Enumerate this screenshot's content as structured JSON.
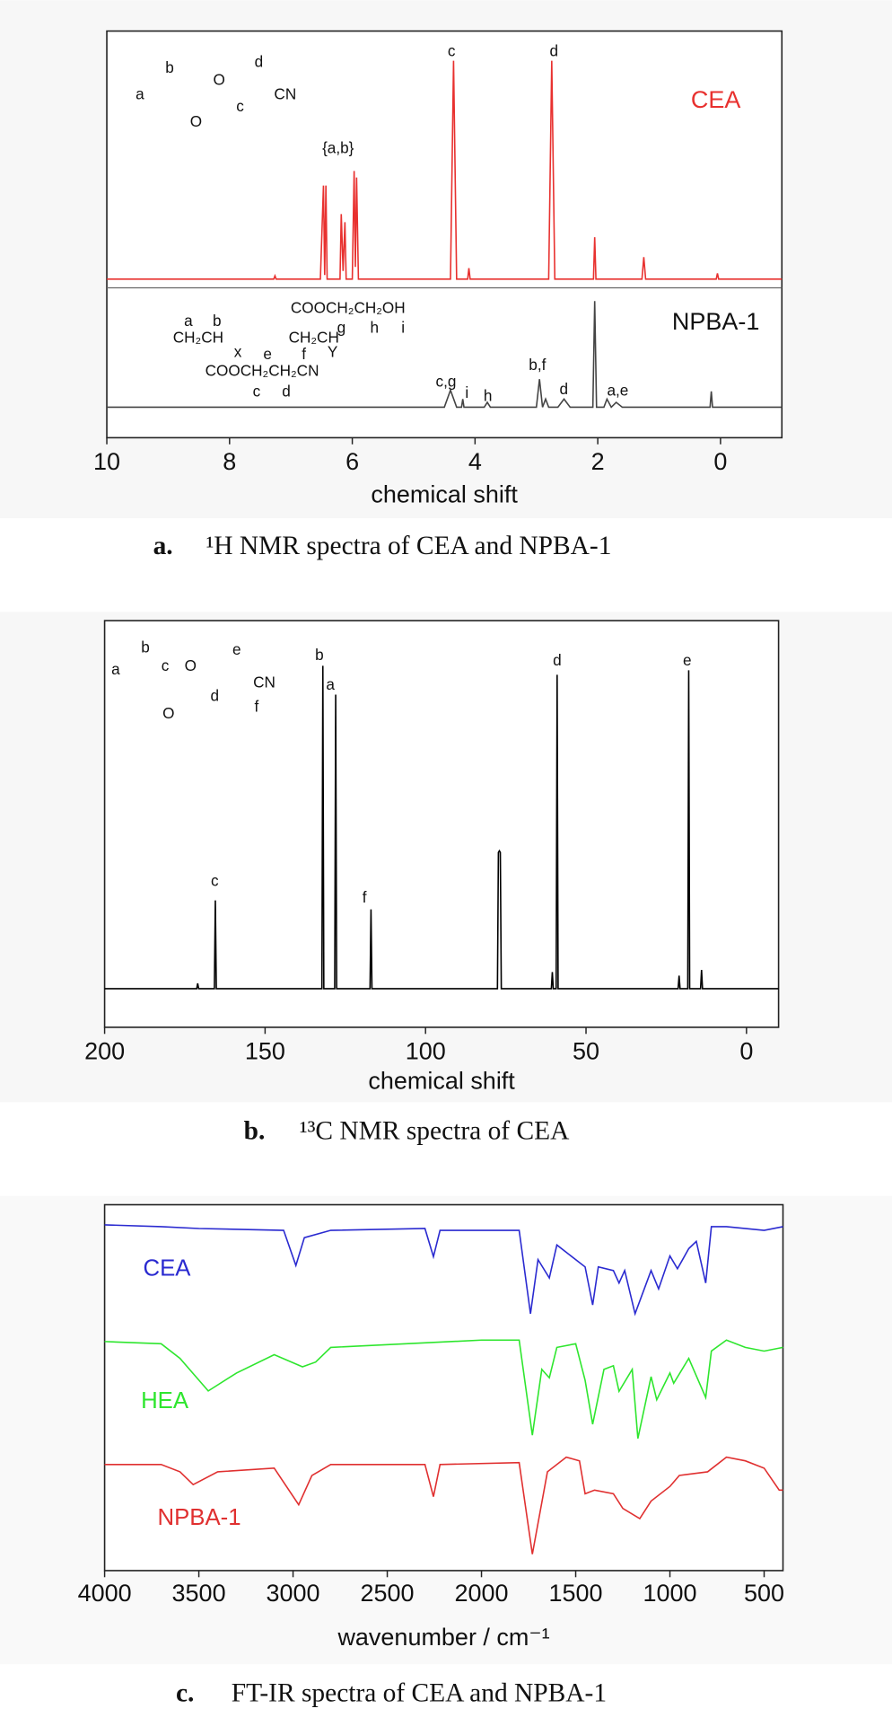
{
  "chart_data": [
    {
      "type": "line",
      "caption_label": "a.",
      "caption": "¹H NMR spectra of CEA and NPBA-1",
      "xlabel": "chemical shift",
      "xlim": [
        10,
        -1
      ],
      "xticks": [
        10,
        8,
        6,
        4,
        2,
        0
      ],
      "ylim": [
        0,
        100
      ],
      "series": [
        {
          "name": "CEA",
          "color": "#e8312f",
          "x": [
            10,
            7.28,
            7.26,
            7.24,
            6.52,
            6.47,
            6.45,
            6.43,
            6.41,
            6.2,
            6.18,
            6.15,
            6.12,
            6.1,
            6.0,
            5.97,
            5.95,
            5.93,
            5.9,
            4.4,
            4.35,
            4.3,
            4.12,
            4.1,
            4.08,
            2.8,
            2.75,
            2.7,
            2.07,
            2.05,
            2.03,
            1.28,
            1.25,
            1.22,
            0.07,
            0.05,
            0.03,
            -1
          ],
          "values": [
            39,
            39,
            39.8,
            39,
            39,
            62,
            40,
            62,
            39,
            39,
            55,
            41,
            53,
            39,
            39,
            65.6,
            42,
            64,
            39,
            39,
            92.7,
            39,
            39,
            41.7,
            39,
            39,
            92.7,
            39,
            39,
            49.3,
            39,
            39,
            44.4,
            39,
            39,
            40.4,
            39,
            39
          ]
        },
        {
          "name": "NPBA-1",
          "color": "#444444",
          "x": [
            10,
            4.5,
            4.4,
            4.3,
            4.22,
            4.2,
            4.18,
            3.85,
            3.8,
            3.75,
            3.0,
            2.95,
            2.9,
            2.85,
            2.8,
            2.65,
            2.55,
            2.45,
            2.08,
            2.05,
            2.02,
            1.9,
            1.85,
            1.78,
            1.7,
            1.6,
            0.17,
            0.15,
            0.13,
            -1
          ],
          "values": [
            7.5,
            7.5,
            11.7,
            7.5,
            7.5,
            9.5,
            7.5,
            7.5,
            8.7,
            7.5,
            7.5,
            14.4,
            7.5,
            9.5,
            7.5,
            7.5,
            9.5,
            7.5,
            7.5,
            33.6,
            7.5,
            7.5,
            9.5,
            7.5,
            8.7,
            7.5,
            7.5,
            11.4,
            7.5,
            7.5
          ]
        }
      ],
      "annotations": [
        "{a,b}",
        "c",
        "d",
        "c,g",
        "i",
        "h",
        "b,f",
        "d",
        "a,e"
      ],
      "structure_labels": [
        "a",
        "b",
        "O",
        "O",
        "c",
        "d",
        "CN",
        "a",
        "b",
        "COOCH₂CH₂OH",
        "CH₂CH",
        "x",
        "CH₂CH",
        "Y",
        "g",
        "h",
        "i",
        "e",
        "f",
        "COOCH₂CH₂CN",
        "c",
        "d"
      ]
    },
    {
      "type": "line",
      "caption_label": "b.",
      "caption": "¹³C NMR spectra of CEA",
      "xlabel": "chemical shift",
      "xlim": [
        200,
        -10
      ],
      "xticks": [
        200,
        150,
        100,
        50,
        0
      ],
      "ylim": [
        0,
        100
      ],
      "series": [
        {
          "name": null,
          "color": "#000000",
          "x": [
            200,
            171.3,
            171,
            170.7,
            165.8,
            165.5,
            165.2,
            132.3,
            132,
            131.7,
            128.3,
            128,
            127.7,
            117.3,
            117,
            116.7,
            77.6,
            77.3,
            77,
            76.7,
            76.4,
            60.8,
            60.5,
            60.2,
            59.3,
            59,
            58.7,
            21.3,
            21,
            20.7,
            18.3,
            18,
            17.7,
            14.3,
            14,
            13.7,
            -10
          ],
          "values": [
            9.5,
            9.5,
            10.8,
            9.5,
            9.5,
            31.2,
            9.5,
            9.5,
            88.9,
            9.5,
            9.5,
            81.8,
            9.5,
            9.5,
            29,
            9.5,
            9.5,
            43,
            43.4,
            43,
            9.5,
            9.5,
            13.6,
            9.5,
            9.5,
            86.7,
            9.5,
            9.5,
            12.7,
            9.5,
            9.5,
            87.8,
            9.5,
            9.5,
            14.1,
            9.5,
            9.5
          ]
        }
      ],
      "annotations": [
        "c",
        "b",
        "a",
        "f",
        "d",
        "e"
      ],
      "structure_labels": [
        "a",
        "b",
        "c",
        "O",
        "O",
        "d",
        "e",
        "CN",
        "f"
      ]
    },
    {
      "type": "line",
      "caption_label": "c.",
      "caption": "FT-IR spectra of CEA and NPBA-1",
      "xlabel": "wavenumber / cm⁻¹",
      "xlim": [
        4000,
        400
      ],
      "xticks": [
        4000,
        3500,
        3000,
        2500,
        2000,
        1500,
        1000,
        500
      ],
      "ylim": [
        0,
        100
      ],
      "series": [
        {
          "name": "CEA",
          "color": "#2a2ad0",
          "x": [
            4000,
            3700,
            3500,
            3050,
            2985,
            2940,
            2800,
            2300,
            2255,
            2220,
            1800,
            1740,
            1700,
            1640,
            1600,
            1450,
            1410,
            1380,
            1300,
            1270,
            1240,
            1185,
            1100,
            1060,
            1000,
            960,
            900,
            860,
            810,
            780,
            700,
            500,
            400
          ],
          "values": [
            94.5,
            94,
            93.5,
            93,
            83.4,
            91,
            93,
            93.5,
            85.8,
            93,
            93,
            70.2,
            85,
            80,
            89,
            83,
            72.6,
            83,
            82,
            78.6,
            82,
            70.2,
            82,
            77,
            86,
            82.5,
            88,
            90,
            78.6,
            94,
            94,
            93,
            94
          ]
        },
        {
          "name": "HEA",
          "color": "#2ee62e",
          "x": [
            4000,
            3700,
            3600,
            3450,
            3300,
            3100,
            2950,
            2880,
            2800,
            2000,
            1800,
            1730,
            1680,
            1640,
            1600,
            1500,
            1450,
            1410,
            1350,
            1300,
            1270,
            1200,
            1170,
            1100,
            1070,
            1000,
            980,
            900,
            810,
            780,
            700,
            600,
            500,
            400
          ],
          "values": [
            62.6,
            62,
            58,
            49.1,
            54,
            59,
            55.7,
            57,
            61,
            63,
            63,
            37,
            55,
            52.7,
            61,
            62,
            52,
            40,
            55,
            56,
            49,
            55,
            36.1,
            53,
            46.7,
            54,
            51.2,
            58,
            47.3,
            60,
            63,
            61,
            60,
            61
          ]
        },
        {
          "name": "NPBA-1",
          "color": "#e03030",
          "x": [
            4000,
            3700,
            3600,
            3530,
            3400,
            3100,
            2970,
            2900,
            2800,
            2300,
            2255,
            2220,
            1800,
            1730,
            1650,
            1550,
            1480,
            1450,
            1400,
            1300,
            1250,
            1160,
            1100,
            1000,
            950,
            800,
            700,
            600,
            500,
            420,
            400
          ],
          "values": [
            29,
            29,
            27,
            23.5,
            27,
            28,
            18,
            26,
            29,
            29,
            20.2,
            29,
            29.5,
            4.5,
            27,
            31,
            30,
            21,
            22,
            21,
            17,
            14.2,
            19,
            23,
            26,
            27,
            31,
            30,
            28,
            22,
            22
          ]
        }
      ]
    }
  ]
}
